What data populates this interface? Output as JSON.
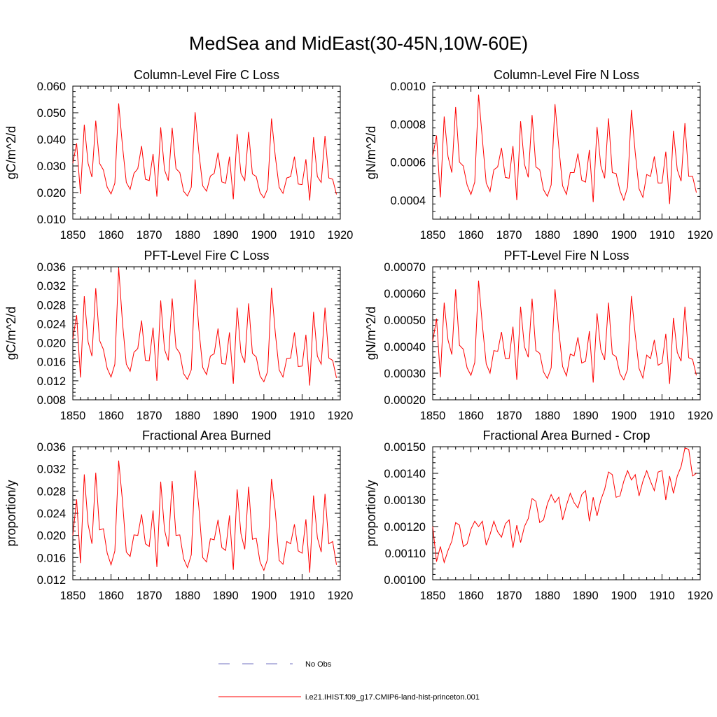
{
  "title": "MedSea and MidEast(30-45N,10W-60E)",
  "legend": {
    "obs_label": "No Obs",
    "obs_color": "#7070c0",
    "model_label": "i.e21.IHIST.f09_g17.CMIP6-land-hist-princeton.001",
    "model_color": "#ff0000"
  },
  "chart_data": [
    {
      "type": "line",
      "title": "Column-Level Fire C Loss",
      "ylabel": "gC/m^2/d",
      "xlim": [
        1850,
        1920
      ],
      "ylim": [
        0.01,
        0.06
      ],
      "xticks": [
        "1850",
        "1860",
        "1870",
        "1880",
        "1890",
        "1900",
        "1910",
        "1920"
      ],
      "yticks": [
        "0.010",
        "0.020",
        "0.030",
        "0.040",
        "0.050",
        "0.060"
      ],
      "series": [
        {
          "color": "#ff0000",
          "x_start": 1850,
          "values": [
            0.031,
            0.0385,
            0.0195,
            0.0455,
            0.031,
            0.0258,
            0.047,
            0.031,
            0.0285,
            0.022,
            0.0195,
            0.0235,
            0.0535,
            0.0375,
            0.0238,
            0.0212,
            0.0272,
            0.029,
            0.0375,
            0.025,
            0.0245,
            0.0345,
            0.0185,
            0.0445,
            0.0285,
            0.0245,
            0.0443,
            0.029,
            0.0275,
            0.0205,
            0.0187,
            0.022,
            0.0502,
            0.035,
            0.0225,
            0.0205,
            0.0262,
            0.0272,
            0.035,
            0.024,
            0.0235,
            0.0335,
            0.0175,
            0.042,
            0.0272,
            0.0245,
            0.0428,
            0.027,
            0.026,
            0.02,
            0.018,
            0.0215,
            0.0478,
            0.0335,
            0.022,
            0.0197,
            0.0255,
            0.026,
            0.0335,
            0.0232,
            0.023,
            0.0325,
            0.017,
            0.0408,
            0.026,
            0.0238,
            0.0413,
            0.0255,
            0.025,
            0.0193
          ]
        }
      ]
    },
    {
      "type": "line",
      "title": "Column-Level Fire N Loss",
      "ylabel": "gN/m^2/d",
      "xlim": [
        1850,
        1920
      ],
      "ylim": [
        0.0003,
        0.001
      ],
      "xticks": [
        "1850",
        "1860",
        "1870",
        "1880",
        "1890",
        "1900",
        "1910",
        "1920"
      ],
      "yticks": [
        "0.0004",
        "0.0006",
        "0.0008",
        "0.0010"
      ],
      "series": [
        {
          "color": "#ff0000",
          "x_start": 1850,
          "values": [
            0.00063,
            0.00074,
            0.000415,
            0.00084,
            0.00063,
            0.000545,
            0.00089,
            0.0006,
            0.00058,
            0.00048,
            0.00043,
            0.000495,
            0.000955,
            0.00072,
            0.00049,
            0.000445,
            0.00056,
            0.000575,
            0.000675,
            0.00052,
            0.000515,
            0.000685,
            0.0004,
            0.000815,
            0.00059,
            0.00052,
            0.000848,
            0.000575,
            0.00056,
            0.000455,
            0.00042,
            0.00048,
            0.000905,
            0.00068,
            0.000475,
            0.00043,
            0.000545,
            0.000545,
            0.000645,
            0.000505,
            0.000495,
            0.000665,
            0.00039,
            0.000785,
            0.00058,
            0.000515,
            0.00083,
            0.000545,
            0.00054,
            0.00045,
            0.0004,
            0.00047,
            0.000875,
            0.00065,
            0.00046,
            0.000415,
            0.000535,
            0.000525,
            0.00063,
            0.00049,
            0.00049,
            0.000655,
            0.00038,
            0.000765,
            0.00056,
            0.0005,
            0.000805,
            0.000525,
            0.000525,
            0.00044
          ]
        }
      ]
    },
    {
      "type": "line",
      "title": "PFT-Level Fire C Loss",
      "ylabel": "gC/m^2/d",
      "xlim": [
        1850,
        1920
      ],
      "ylim": [
        0.008,
        0.036
      ],
      "xticks": [
        "1850",
        "1860",
        "1870",
        "1880",
        "1890",
        "1900",
        "1910",
        "1920"
      ],
      "yticks": [
        "0.008",
        "0.012",
        "0.016",
        "0.020",
        "0.024",
        "0.028",
        "0.032",
        "0.036"
      ],
      "series": [
        {
          "color": "#ff0000",
          "x_start": 1850,
          "values": [
            0.0208,
            0.0258,
            0.0127,
            0.0298,
            0.0202,
            0.0172,
            0.0315,
            0.0205,
            0.0186,
            0.0146,
            0.0128,
            0.0155,
            0.0358,
            0.0242,
            0.0155,
            0.014,
            0.018,
            0.0188,
            0.0247,
            0.0163,
            0.0162,
            0.0232,
            0.012,
            0.0289,
            0.0186,
            0.0163,
            0.0293,
            0.019,
            0.0178,
            0.0135,
            0.0123,
            0.0143,
            0.0333,
            0.0228,
            0.0148,
            0.0133,
            0.0172,
            0.0177,
            0.023,
            0.0156,
            0.0155,
            0.0222,
            0.0114,
            0.0274,
            0.0179,
            0.0158,
            0.0283,
            0.0178,
            0.017,
            0.013,
            0.0118,
            0.014,
            0.0316,
            0.022,
            0.0143,
            0.0128,
            0.0167,
            0.0168,
            0.0222,
            0.015,
            0.0151,
            0.0217,
            0.011,
            0.0265,
            0.0172,
            0.0155,
            0.0274,
            0.0168,
            0.0163,
            0.0126
          ]
        }
      ]
    },
    {
      "type": "line",
      "title": "PFT-Level Fire N Loss",
      "ylabel": "gN/m^2/d",
      "xlim": [
        1850,
        1920
      ],
      "ylim": [
        0.0002,
        0.0007
      ],
      "xticks": [
        "1850",
        "1860",
        "1870",
        "1880",
        "1890",
        "1900",
        "1910",
        "1920"
      ],
      "yticks": [
        "0.00020",
        "0.00030",
        "0.00040",
        "0.00050",
        "0.00060",
        "0.00070"
      ],
      "series": [
        {
          "color": "#ff0000",
          "x_start": 1850,
          "values": [
            0.00042,
            0.000505,
            0.000285,
            0.000565,
            0.000425,
            0.00037,
            0.000615,
            0.000405,
            0.00039,
            0.00032,
            0.000292,
            0.00034,
            0.000648,
            0.00048,
            0.000335,
            0.0003,
            0.000385,
            0.000382,
            0.000455,
            0.000355,
            0.000355,
            0.000475,
            0.000275,
            0.00055,
            0.0004,
            0.00036,
            0.00058,
            0.000385,
            0.000375,
            0.000305,
            0.00028,
            0.00032,
            0.000615,
            0.00046,
            0.000325,
            0.00029,
            0.000372,
            0.000365,
            0.000435,
            0.000338,
            0.000345,
            0.000458,
            0.000265,
            0.000525,
            0.000388,
            0.00035,
            0.000565,
            0.000372,
            0.000362,
            0.000298,
            0.000275,
            0.000315,
            0.00059,
            0.000445,
            0.000318,
            0.000282,
            0.000368,
            0.000355,
            0.000425,
            0.00033,
            0.000338,
            0.000448,
            0.00026,
            0.000508,
            0.000378,
            0.000345,
            0.00055,
            0.000358,
            0.000352,
            0.000292
          ]
        }
      ]
    },
    {
      "type": "line",
      "title": "Fractional Area Burned",
      "ylabel": "proportion/y",
      "xlim": [
        1850,
        1920
      ],
      "ylim": [
        0.012,
        0.036
      ],
      "xticks": [
        "1850",
        "1860",
        "1870",
        "1880",
        "1890",
        "1900",
        "1910",
        "1920"
      ],
      "yticks": [
        "0.012",
        "0.016",
        "0.020",
        "0.024",
        "0.028",
        "0.032",
        "0.036"
      ],
      "series": [
        {
          "color": "#ff0000",
          "x_start": 1850,
          "values": [
            0.02,
            0.0265,
            0.015,
            0.031,
            0.022,
            0.0185,
            0.0313,
            0.021,
            0.0212,
            0.0168,
            0.0147,
            0.0172,
            0.0335,
            0.0262,
            0.017,
            0.0162,
            0.0201,
            0.02,
            0.0238,
            0.0185,
            0.018,
            0.0245,
            0.0143,
            0.0297,
            0.021,
            0.018,
            0.0298,
            0.02,
            0.0201,
            0.0158,
            0.0142,
            0.0165,
            0.0317,
            0.025,
            0.016,
            0.0152,
            0.0194,
            0.0192,
            0.0228,
            0.0178,
            0.0173,
            0.0236,
            0.0138,
            0.0283,
            0.0203,
            0.0175,
            0.0288,
            0.0193,
            0.0195,
            0.0152,
            0.0137,
            0.0158,
            0.0302,
            0.0243,
            0.0155,
            0.0148,
            0.0189,
            0.0185,
            0.022,
            0.0172,
            0.0168,
            0.0229,
            0.0133,
            0.0272,
            0.0196,
            0.017,
            0.0275,
            0.0185,
            0.0189,
            0.0147
          ]
        }
      ]
    },
    {
      "type": "line",
      "title": "Fractional Area Burned - Crop",
      "ylabel": "proportion/y",
      "xlim": [
        1850,
        1920
      ],
      "ylim": [
        0.001,
        0.0015
      ],
      "xticks": [
        "1850",
        "1860",
        "1870",
        "1880",
        "1890",
        "1900",
        "1910",
        "1920"
      ],
      "yticks": [
        "0.00100",
        "0.00110",
        "0.00120",
        "0.00130",
        "0.00140",
        "0.00150"
      ],
      "series": [
        {
          "color": "#ff0000",
          "x_start": 1850,
          "values": [
            0.0012,
            0.001068,
            0.001125,
            0.001065,
            0.00111,
            0.001145,
            0.001215,
            0.001205,
            0.001125,
            0.001135,
            0.00119,
            0.00122,
            0.0012,
            0.00122,
            0.00113,
            0.00117,
            0.00122,
            0.00118,
            0.00116,
            0.00121,
            0.001225,
            0.00112,
            0.001205,
            0.00114,
            0.0012,
            0.00123,
            0.001305,
            0.001295,
            0.001215,
            0.001225,
            0.001285,
            0.00132,
            0.00129,
            0.00131,
            0.001225,
            0.00128,
            0.001325,
            0.00129,
            0.00127,
            0.00132,
            0.001335,
            0.00122,
            0.00131,
            0.00124,
            0.0013,
            0.00134,
            0.001405,
            0.001395,
            0.00131,
            0.001315,
            0.00137,
            0.00141,
            0.001375,
            0.001395,
            0.001315,
            0.00137,
            0.00141,
            0.00137,
            0.001335,
            0.001405,
            0.00141,
            0.0013,
            0.00139,
            0.001325,
            0.00139,
            0.001425,
            0.001495,
            0.00149,
            0.00139,
            0.0014
          ]
        }
      ]
    }
  ]
}
